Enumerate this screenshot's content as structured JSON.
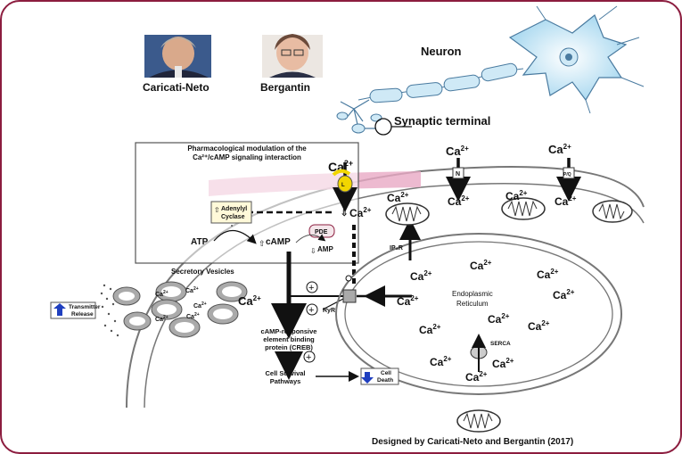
{
  "authors": {
    "left": "Caricati-Neto",
    "right": "Bergantin"
  },
  "neuron": {
    "title": "Neuron",
    "terminal": "Synaptic terminal"
  },
  "inset": {
    "title_line1": "Pharmacological modulation of the",
    "title_line2": "Ca²⁺/cAMP signaling interaction"
  },
  "labels": {
    "ca_top_inset": "Ca",
    "ca_top_mid": "Ca",
    "ca_top_right": "Ca",
    "ca_inset_arrow": "Ca",
    "adenylyl_line1": "Adenylyl",
    "adenylyl_line2": "Cyclase",
    "atp": "ATP",
    "camp": "cAMP",
    "pde": "PDE",
    "amp": "AMP",
    "l_channel": "L",
    "n_channel": "N",
    "pq_channel": "P/Q",
    "secretory": "Secretory Vesicles",
    "transmitter_line1": "Transmitter",
    "transmitter_line2": "Release",
    "creb_line1": "cAMP-responsive",
    "creb_line2": "element binding",
    "creb_line3": "protein (CREB)",
    "survival_line1": "Cell Survival",
    "survival_line2": "Pathways",
    "cell_death_line1": "Cell",
    "cell_death_line2": "Death",
    "er_line1": "Endoplasmic",
    "er_line2": "Reticulum",
    "ryr": "RyR",
    "ip3r": "IP₃R",
    "serca": "SERCA",
    "plus": "+",
    "superscript": "2+"
  },
  "credit": "Designed by Caricati-Neto and Bergantin (2017)",
  "colors": {
    "frame": "#8c1d3f",
    "membrane_pink": "#e9a9c4",
    "blue_arrow": "#1f3fbf",
    "yellow": "#f2d600"
  }
}
